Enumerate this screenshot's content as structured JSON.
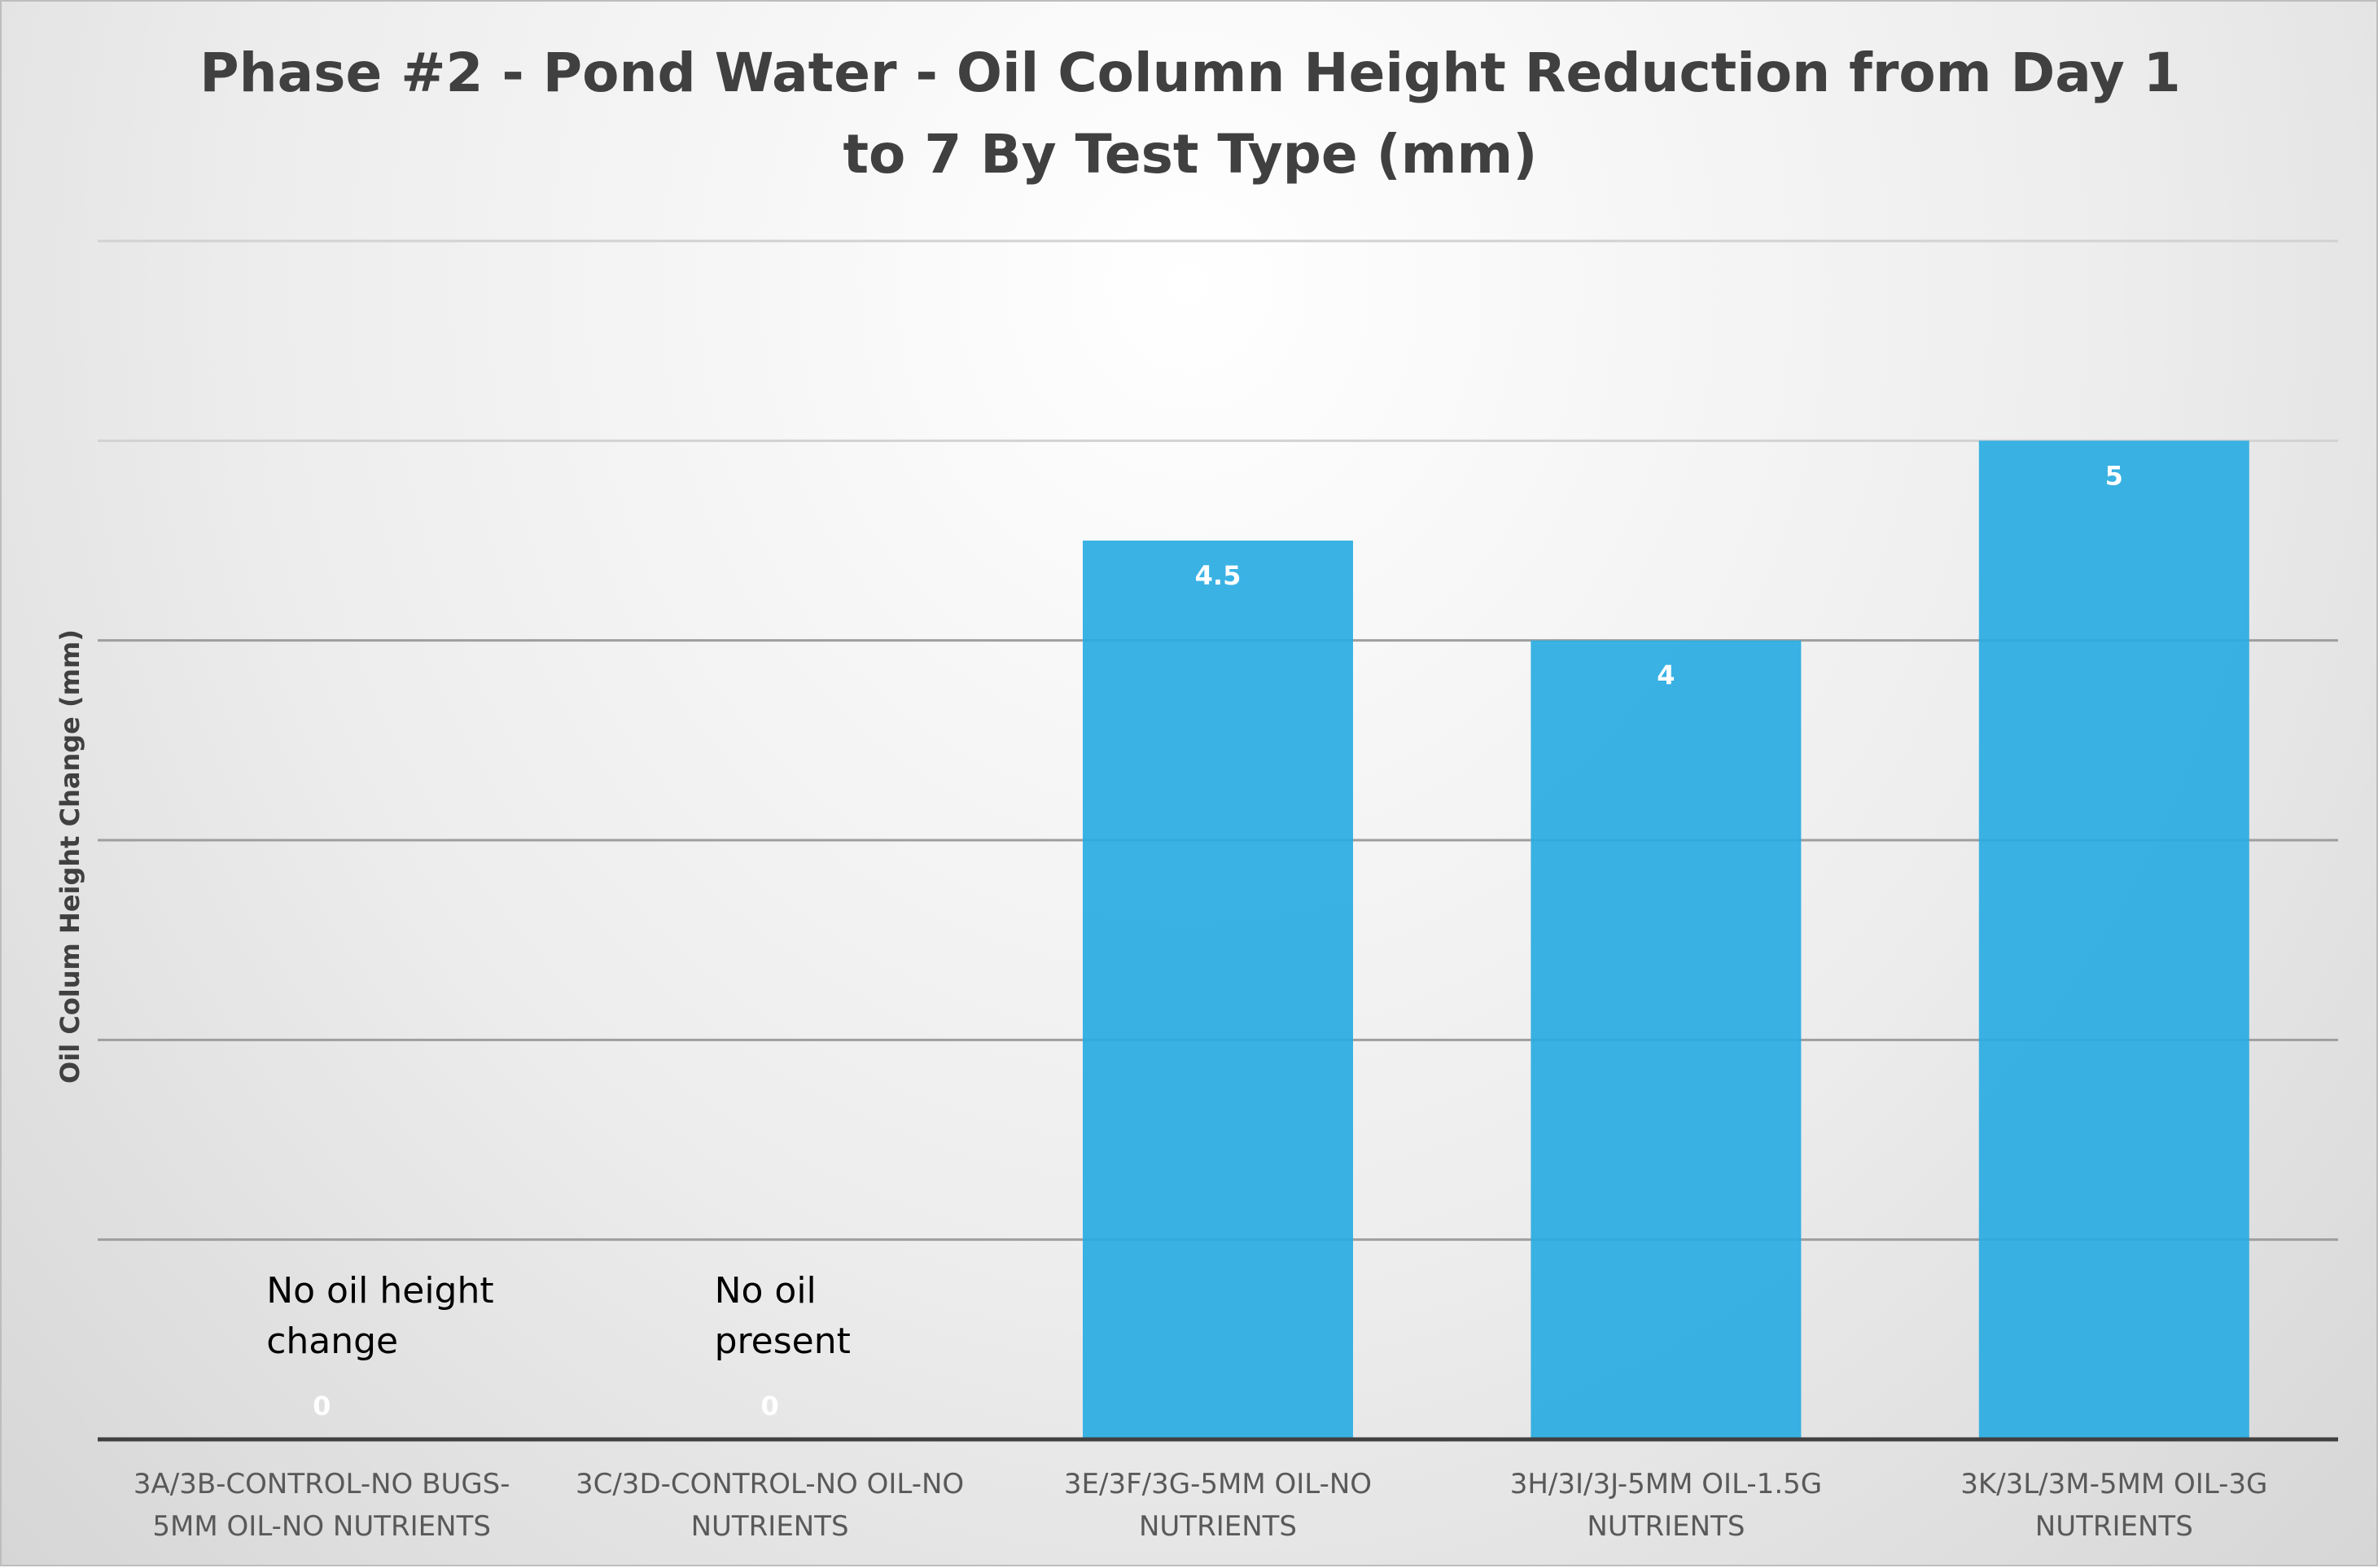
{
  "chart_data": {
    "type": "bar",
    "title": "Phase #2 - Pond Water - Oil Column Height Reduction from Day 1 to 7 By Test Type (mm)",
    "title_lines": [
      "Phase #2 - Pond Water - Oil Column Height Reduction from Day 1",
      "to 7 By Test Type (mm)"
    ],
    "xlabel": "",
    "ylabel": "Oil Colum Height Change (mm)",
    "ylim": [
      0,
      6
    ],
    "grid": true,
    "categories": [
      "3A/3B-CONTROL-NO BUGS-5MM OIL-NO NUTRIENTS",
      "3C/3D-CONTROL-NO OIL-NO NUTRIENTS",
      "3E/3F/3G-5MM OIL-NO NUTRIENTS",
      "3H/3I/3J-5MM OIL-1.5G NUTRIENTS",
      "3K/3L/3M-5MM OIL-3G NUTRIENTS"
    ],
    "category_lines": [
      [
        "3A/3B-CONTROL-NO BUGS-",
        "5MM OIL-NO NUTRIENTS"
      ],
      [
        "3C/3D-CONTROL-NO OIL-NO",
        "NUTRIENTS"
      ],
      [
        "3E/3F/3G-5MM OIL-NO",
        "NUTRIENTS"
      ],
      [
        "3H/3I/3J-5MM OIL-1.5G",
        "NUTRIENTS"
      ],
      [
        "3K/3L/3M-5MM OIL-3G",
        "NUTRIENTS"
      ]
    ],
    "values": [
      0,
      0,
      4.5,
      4,
      5
    ],
    "data_labels": [
      "0",
      "0",
      "4.5",
      "4",
      "5"
    ],
    "annotations": [
      {
        "category_index": 0,
        "lines": [
          "No oil height",
          "change"
        ]
      },
      {
        "category_index": 1,
        "lines": [
          "No oil",
          "present"
        ]
      }
    ],
    "bar_color": "#29abe2"
  }
}
